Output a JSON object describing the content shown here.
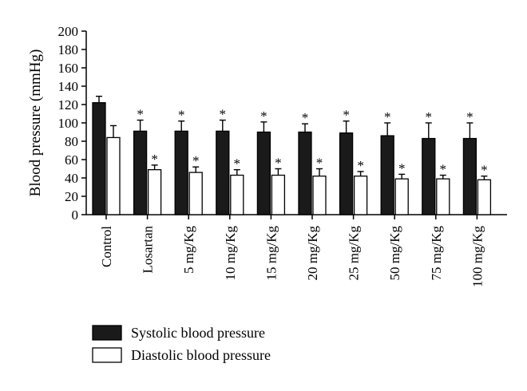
{
  "chart_data": {
    "type": "bar",
    "ylabel": "Blood pressure (mmHg)",
    "xlabel": "",
    "ylim": [
      0,
      200
    ],
    "yticks": [
      0,
      20,
      40,
      60,
      80,
      100,
      120,
      140,
      160,
      180,
      200
    ],
    "categories": [
      "Control",
      "Losartan",
      "5 mg/Kg",
      "10 mg/Kg",
      "15 mg/Kg",
      "20 mg/Kg",
      "25 mg/Kg",
      "50 mg/Kg",
      "75 mg/Kg",
      "100 mg/Kg"
    ],
    "series": [
      {
        "name": "Systolic blood pressure",
        "color": "#1a1a1a",
        "values": [
          122,
          91,
          91,
          91,
          90,
          90,
          89,
          86,
          83,
          83
        ],
        "errors": [
          7,
          12,
          11,
          12,
          11,
          9,
          13,
          14,
          17,
          17
        ],
        "significant": [
          false,
          true,
          true,
          true,
          true,
          true,
          true,
          true,
          true,
          true
        ]
      },
      {
        "name": "Diastolic blood pressure",
        "color": "#ffffff",
        "values": [
          84,
          49,
          46,
          43,
          43,
          42,
          42,
          39,
          39,
          38
        ],
        "errors": [
          13,
          5,
          6,
          6,
          7,
          8,
          5,
          5,
          4,
          4
        ],
        "significant": [
          false,
          true,
          true,
          true,
          true,
          true,
          true,
          true,
          true,
          true
        ]
      }
    ],
    "significance_marker": "*",
    "legend_position": "bottom-left",
    "grid": false
  }
}
